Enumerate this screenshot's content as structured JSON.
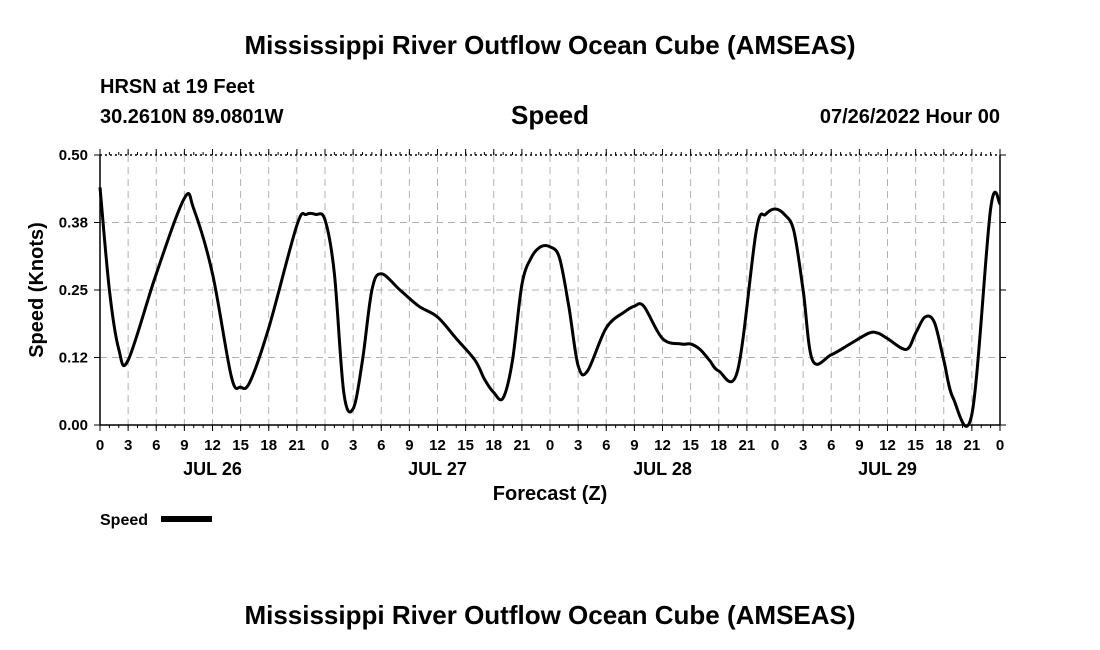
{
  "header": {
    "title_top": "Mississippi River Outflow Ocean Cube (AMSEAS)",
    "station": "HRSN at 19 Feet",
    "coords": "30.2610N  89.0801W",
    "center_title": "Speed",
    "date": "07/26/2022 Hour 00",
    "title_bottom": "Mississippi River Outflow Ocean Cube (AMSEAS)"
  },
  "chart_data": {
    "type": "line",
    "xlabel": "Forecast (Z)",
    "ylabel": "Speed (Knots)",
    "xlim": [
      0,
      96
    ],
    "ylim": [
      0,
      0.5
    ],
    "y_ticks": [
      "0.00",
      "0.12",
      "0.25",
      "0.38",
      "0.50"
    ],
    "x_tick_labels": [
      "0",
      "3",
      "6",
      "9",
      "12",
      "15",
      "18",
      "21",
      "0",
      "3",
      "6",
      "9",
      "12",
      "15",
      "18",
      "21",
      "0",
      "3",
      "6",
      "9",
      "12",
      "15",
      "18",
      "21",
      "0",
      "3",
      "6",
      "9",
      "12",
      "15",
      "18",
      "21",
      "0"
    ],
    "day_labels": [
      {
        "label": "JUL 26",
        "x": 12
      },
      {
        "label": "JUL 27",
        "x": 36
      },
      {
        "label": "JUL 28",
        "x": 60
      },
      {
        "label": "JUL 29",
        "x": 84
      }
    ],
    "grid": true,
    "legend": {
      "label": "Speed",
      "position": "bottom-left"
    },
    "series": [
      {
        "name": "Speed",
        "color": "#000000",
        "x": [
          0,
          1,
          2,
          3,
          6,
          9,
          10,
          12,
          14,
          15,
          16,
          18,
          21,
          22,
          23,
          24,
          25,
          26,
          27,
          28,
          29,
          30,
          32,
          34,
          36,
          38,
          40,
          41,
          42,
          43,
          44,
          45,
          46,
          47,
          48,
          49,
          50,
          51,
          52,
          54,
          56,
          57,
          58,
          60,
          62,
          63,
          64,
          65,
          66,
          68,
          70,
          71,
          72,
          73,
          74,
          75,
          76,
          78,
          80,
          82,
          83,
          84,
          86,
          87,
          88,
          89,
          90,
          91,
          93,
          95,
          96
        ],
        "y": [
          0.44,
          0.25,
          0.14,
          0.12,
          0.28,
          0.42,
          0.4,
          0.28,
          0.09,
          0.07,
          0.08,
          0.18,
          0.37,
          0.39,
          0.39,
          0.38,
          0.28,
          0.06,
          0.03,
          0.12,
          0.25,
          0.28,
          0.25,
          0.22,
          0.2,
          0.16,
          0.12,
          0.085,
          0.06,
          0.05,
          0.12,
          0.26,
          0.31,
          0.33,
          0.33,
          0.31,
          0.22,
          0.11,
          0.1,
          0.18,
          0.21,
          0.22,
          0.22,
          0.16,
          0.15,
          0.15,
          0.14,
          0.12,
          0.1,
          0.1,
          0.36,
          0.39,
          0.4,
          0.39,
          0.36,
          0.25,
          0.12,
          0.13,
          0.15,
          0.17,
          0.17,
          0.16,
          0.14,
          0.17,
          0.2,
          0.19,
          0.12,
          0.05,
          0.02,
          0.4,
          0.41
        ]
      }
    ]
  }
}
